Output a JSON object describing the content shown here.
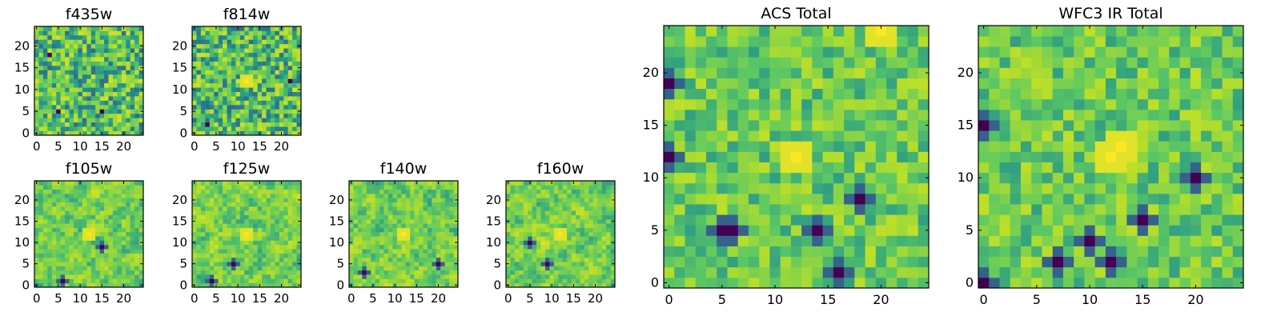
{
  "chart_data": [
    {
      "type": "heatmap",
      "title": "f435w",
      "size": "small",
      "x": [
        0,
        24
      ],
      "y": [
        0,
        24
      ],
      "xlim": [
        -0.5,
        24.5
      ],
      "ylim": [
        -0.5,
        24.5
      ],
      "xticks": [
        0,
        5,
        10,
        15,
        20
      ],
      "yticks": [
        0,
        5,
        10,
        15,
        20
      ],
      "colormap": "viridis",
      "texture": "fine-noise",
      "hotspots": [],
      "coldspots": [
        [
          5,
          5
        ],
        [
          15,
          5
        ],
        [
          3,
          18
        ]
      ]
    },
    {
      "type": "heatmap",
      "title": "f814w",
      "size": "small",
      "x": [
        0,
        24
      ],
      "y": [
        0,
        24
      ],
      "xlim": [
        -0.5,
        24.5
      ],
      "ylim": [
        -0.5,
        24.5
      ],
      "xticks": [
        0,
        5,
        10,
        15,
        20
      ],
      "yticks": [
        0,
        5,
        10,
        15,
        20
      ],
      "colormap": "viridis",
      "texture": "fine-noise",
      "hotspots": [
        [
          12,
          12
        ]
      ],
      "coldspots": [
        [
          3,
          2
        ],
        [
          22,
          12
        ]
      ]
    },
    {
      "type": "heatmap",
      "title": "f105w",
      "size": "small",
      "x": [
        0,
        24
      ],
      "y": [
        0,
        24
      ],
      "xlim": [
        -0.5,
        24.5
      ],
      "ylim": [
        -0.5,
        24.5
      ],
      "xticks": [
        0,
        5,
        10,
        15,
        20
      ],
      "yticks": [
        0,
        5,
        10,
        15,
        20
      ],
      "colormap": "viridis",
      "texture": "smooth",
      "hotspots": [
        [
          12,
          12
        ]
      ],
      "coldspots": [
        [
          6,
          1
        ],
        [
          15,
          9
        ]
      ]
    },
    {
      "type": "heatmap",
      "title": "f125w",
      "size": "small",
      "x": [
        0,
        24
      ],
      "y": [
        0,
        24
      ],
      "xlim": [
        -0.5,
        24.5
      ],
      "ylim": [
        -0.5,
        24.5
      ],
      "xticks": [
        0,
        5,
        10,
        15,
        20
      ],
      "yticks": [
        0,
        5,
        10,
        15,
        20
      ],
      "colormap": "viridis",
      "texture": "smooth",
      "hotspots": [
        [
          12,
          12
        ]
      ],
      "coldspots": [
        [
          4,
          1
        ],
        [
          9,
          5
        ]
      ]
    },
    {
      "type": "heatmap",
      "title": "f140w",
      "size": "small",
      "x": [
        0,
        24
      ],
      "y": [
        0,
        24
      ],
      "xlim": [
        -0.5,
        24.5
      ],
      "ylim": [
        -0.5,
        24.5
      ],
      "xticks": [
        0,
        5,
        10,
        15,
        20
      ],
      "yticks": [
        0,
        5,
        10,
        15,
        20
      ],
      "colormap": "viridis",
      "texture": "smooth",
      "hotspots": [
        [
          12,
          12
        ]
      ],
      "coldspots": [
        [
          3,
          3
        ],
        [
          20,
          5
        ]
      ]
    },
    {
      "type": "heatmap",
      "title": "f160w",
      "size": "small",
      "x": [
        0,
        24
      ],
      "y": [
        0,
        24
      ],
      "xlim": [
        -0.5,
        24.5
      ],
      "ylim": [
        -0.5,
        24.5
      ],
      "xticks": [
        0,
        5,
        10,
        15,
        20
      ],
      "yticks": [
        0,
        5,
        10,
        15,
        20
      ],
      "colormap": "viridis",
      "texture": "smooth",
      "hotspots": [
        [
          12,
          12
        ]
      ],
      "coldspots": [
        [
          5,
          10
        ],
        [
          9,
          5
        ]
      ]
    },
    {
      "type": "heatmap",
      "title": "ACS Total",
      "size": "large",
      "x": [
        0,
        24
      ],
      "y": [
        0,
        24
      ],
      "xlim": [
        -0.5,
        24.5
      ],
      "ylim": [
        -0.5,
        24.5
      ],
      "xticks": [
        0,
        5,
        10,
        15,
        20
      ],
      "yticks": [
        0,
        5,
        10,
        15,
        20
      ],
      "colormap": "viridis",
      "texture": "blocky",
      "hotspots": [
        [
          12,
          12
        ],
        [
          20,
          24
        ]
      ],
      "coldspots": [
        [
          5,
          5
        ],
        [
          6,
          5
        ],
        [
          14,
          5
        ],
        [
          16,
          1
        ],
        [
          18,
          8
        ],
        [
          0,
          12
        ],
        [
          0,
          19
        ]
      ]
    },
    {
      "type": "heatmap",
      "title": "WFC3 IR Total",
      "size": "large",
      "x": [
        0,
        24
      ],
      "y": [
        0,
        24
      ],
      "xlim": [
        -0.5,
        24.5
      ],
      "ylim": [
        -0.5,
        24.5
      ],
      "xticks": [
        0,
        5,
        10,
        15,
        20
      ],
      "yticks": [
        0,
        5,
        10,
        15,
        20
      ],
      "colormap": "viridis",
      "texture": "blocky",
      "hotspots": [
        [
          12,
          12
        ],
        [
          13,
          13
        ]
      ],
      "coldspots": [
        [
          0,
          15
        ],
        [
          0,
          0
        ],
        [
          7,
          2
        ],
        [
          10,
          4
        ],
        [
          15,
          6
        ],
        [
          20,
          10
        ],
        [
          12,
          2
        ]
      ]
    }
  ],
  "colors": {
    "viridis": [
      "#440154",
      "#3b528b",
      "#21918c",
      "#5ec962",
      "#b5de2b",
      "#fde725"
    ]
  }
}
